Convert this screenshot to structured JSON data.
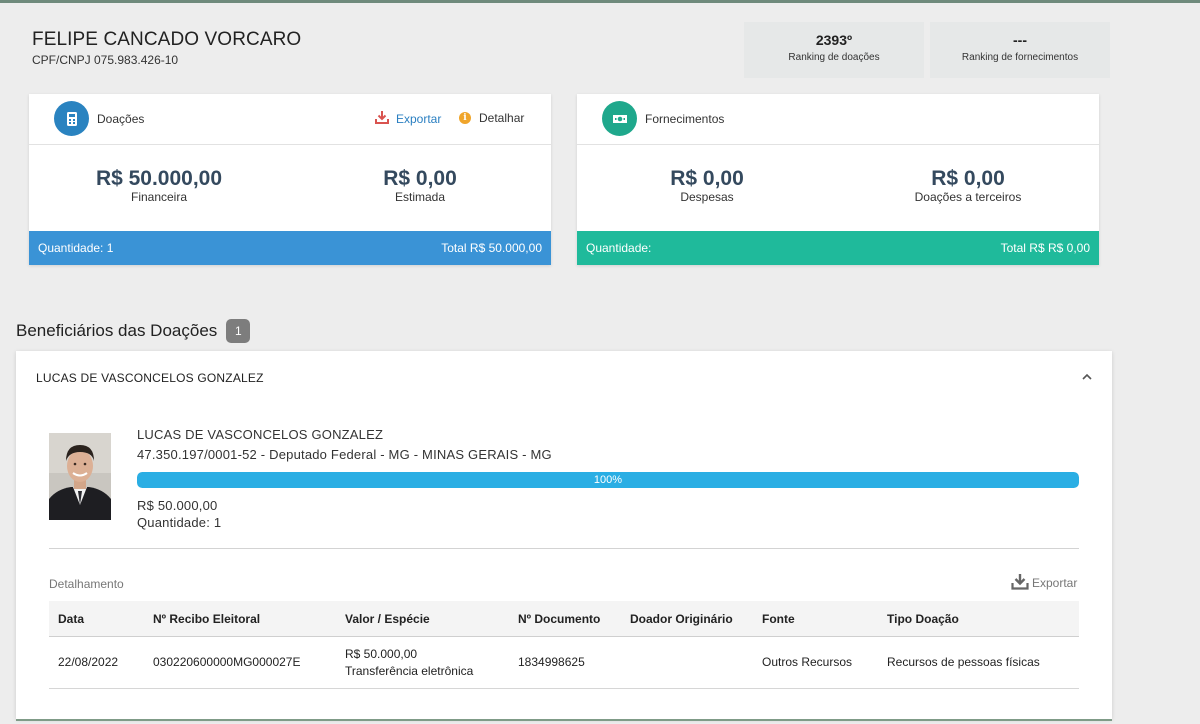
{
  "header": {
    "name": "FELIPE CANCADO VORCARO",
    "document": "CPF/CNPJ 075.983.426-10",
    "ranking_donations": {
      "value": "2393º",
      "label": "Ranking de doações"
    },
    "ranking_supplies": {
      "value": "---",
      "label": "Ranking de fornecimentos"
    }
  },
  "donations_card": {
    "title": "Doações",
    "export_label": "Exportar",
    "detail_label": "Detalhar",
    "financial": {
      "value": "R$ 50.000,00",
      "label": "Financeira"
    },
    "estimated": {
      "value": "R$ 0,00",
      "label": "Estimada"
    },
    "footer_quantity": "Quantidade: 1",
    "footer_total": "Total R$ 50.000,00",
    "accent_color": "#2a83c0",
    "footer_color": "#3a93d6"
  },
  "supplies_card": {
    "title": "Fornecimentos",
    "expenses": {
      "value": "R$ 0,00",
      "label": "Despesas"
    },
    "third_party": {
      "value": "R$ 0,00",
      "label": "Doações a terceiros"
    },
    "footer_quantity": "Quantidade:",
    "footer_total": "Total R$ R$ 0,00",
    "accent_color": "#1fa88c",
    "footer_color": "#1fba9b"
  },
  "beneficiaries": {
    "title": "Beneficiários das Doações",
    "count": "1",
    "items": [
      {
        "header_name": "LUCAS DE VASCONCELOS GONZALEZ",
        "name": "LUCAS DE VASCONCELOS GONZALEZ",
        "info": "47.350.197/0001-52 - Deputado Federal - MG - MINAS GERAIS - MG",
        "progress_label": "100%",
        "progress_fraction": 1.0,
        "value": "R$ 50.000,00",
        "quantity": "Quantidade: 1",
        "detail_title": "Detalhamento",
        "export_label": "Exportar",
        "table": {
          "columns": [
            "Data",
            "Nº Recibo Eleitoral",
            "Valor / Espécie",
            "Nº Documento",
            "Doador Originário",
            "Fonte",
            "Tipo Doação"
          ],
          "rows": [
            {
              "date": "22/08/2022",
              "receipt": "030220600000MG000027E",
              "value": "R$ 50.000,00",
              "species": "Transferência eletrônica",
              "document": "1834998625",
              "original_donor": "",
              "source": "Outros Recursos",
              "type": "Recursos de pessoas físicas"
            }
          ]
        }
      }
    ]
  },
  "icons": {
    "donations": "calculator-icon",
    "supplies": "cash-icon",
    "export": "download-icon",
    "detail": "info-icon",
    "collapse": "chevron-up-icon"
  }
}
